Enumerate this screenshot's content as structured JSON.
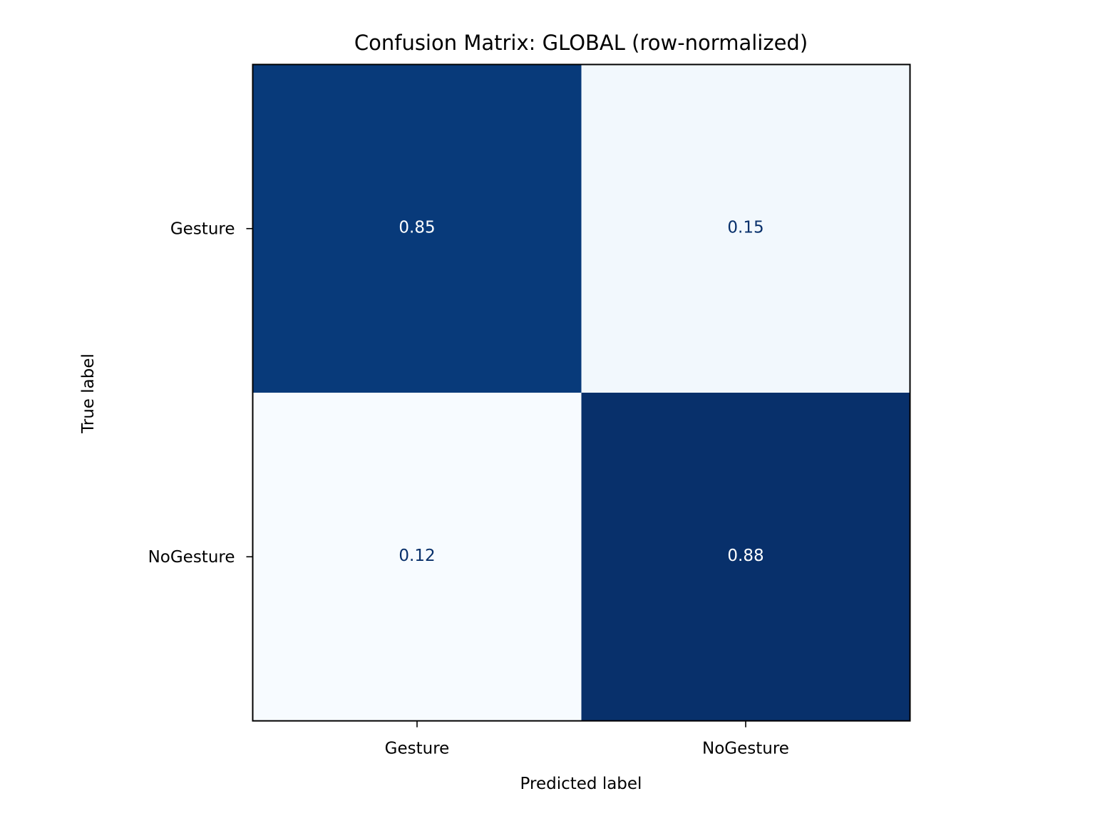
{
  "chart_data": {
    "type": "heatmap",
    "title": "Confusion Matrix: GLOBAL (row-normalized)",
    "xlabel": "Predicted label",
    "ylabel": "True label",
    "x_categories": [
      "Gesture",
      "NoGesture"
    ],
    "y_categories": [
      "Gesture",
      "NoGesture"
    ],
    "values": [
      [
        0.85,
        0.15
      ],
      [
        0.12,
        0.88
      ]
    ],
    "value_labels": [
      [
        "0.85",
        "0.15"
      ],
      [
        "0.12",
        "0.88"
      ]
    ],
    "colormap": "Blues",
    "color_range": [
      0.12,
      0.88
    ],
    "colors": {
      "cell_light": "#f7fbff",
      "cell_dark": "#08306b",
      "text_on_dark": "#ffffff",
      "text_on_light": "#08306b"
    },
    "colorbar": false,
    "grid": false
  }
}
